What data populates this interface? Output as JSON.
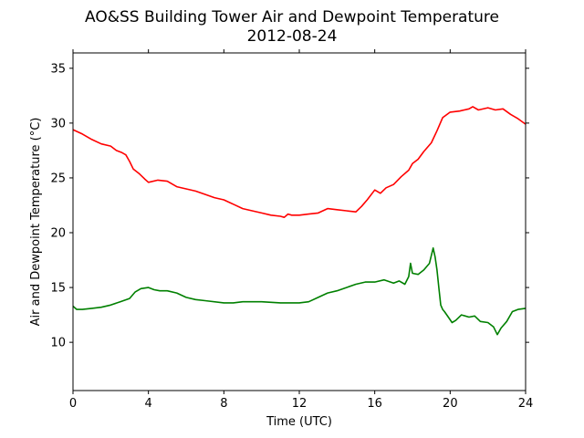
{
  "chart_data": {
    "type": "line",
    "title": "AO&SS Building Tower Air and Dewpoint Temperature",
    "subtitle": "2012-08-24",
    "xlabel": "Time (UTC)",
    "ylabel": "Air and Dewpoint Temperature (°C)",
    "xlim": [
      0,
      24
    ],
    "ylim": [
      5.6,
      36.4
    ],
    "xticks": [
      0,
      4,
      8,
      12,
      16,
      20,
      24
    ],
    "yticks": [
      10,
      15,
      20,
      25,
      30,
      35
    ],
    "grid": false,
    "series": [
      {
        "color": "#ff0000",
        "x": [
          0,
          0.5,
          1,
          1.5,
          2,
          2.3,
          2.6,
          2.8,
          3,
          3.2,
          3.5,
          3.8,
          4,
          4.5,
          5,
          5.5,
          6,
          6.5,
          7,
          7.5,
          8,
          8.5,
          9,
          9.5,
          10,
          10.5,
          11,
          11.2,
          11.4,
          11.6,
          12,
          12.5,
          13,
          13.5,
          14,
          14.5,
          15,
          15.3,
          15.6,
          16,
          16.3,
          16.6,
          17,
          17.4,
          17.8,
          18,
          18.3,
          18.6,
          19,
          19.3,
          19.6,
          20,
          20.5,
          21,
          21.2,
          21.5,
          22,
          22.4,
          22.8,
          23.2,
          23.6,
          24
        ],
        "values": [
          29.4,
          29.0,
          28.5,
          28.1,
          27.9,
          27.5,
          27.3,
          27.1,
          26.5,
          25.8,
          25.4,
          24.9,
          24.6,
          24.8,
          24.7,
          24.2,
          24.0,
          23.8,
          23.5,
          23.2,
          23.0,
          22.6,
          22.2,
          22.0,
          21.8,
          21.6,
          21.5,
          21.4,
          21.7,
          21.6,
          21.6,
          21.7,
          21.8,
          22.2,
          22.1,
          22.0,
          21.9,
          22.4,
          23.0,
          23.9,
          23.6,
          24.1,
          24.4,
          25.1,
          25.7,
          26.3,
          26.7,
          27.4,
          28.2,
          29.3,
          30.5,
          31.0,
          31.1,
          31.3,
          31.5,
          31.2,
          31.4,
          31.2,
          31.3,
          30.8,
          30.4,
          29.9
        ]
      },
      {
        "color": "#008000",
        "x": [
          0,
          0.2,
          0.5,
          1,
          1.5,
          2,
          2.5,
          3,
          3.3,
          3.6,
          4,
          4.3,
          4.6,
          5,
          5.5,
          6,
          6.5,
          7,
          8,
          8.5,
          9,
          10,
          11,
          12,
          12.5,
          13,
          13.5,
          14,
          14.5,
          15,
          15.5,
          16,
          16.5,
          17,
          17.3,
          17.6,
          17.8,
          17.9,
          18.0,
          18.3,
          18.6,
          18.9,
          19.1,
          19.2,
          19.3,
          19.4,
          19.5,
          19.6,
          19.7,
          19.9,
          20.1,
          20.3,
          20.6,
          21,
          21.3,
          21.6,
          22,
          22.3,
          22.5,
          22.7,
          23,
          23.3,
          23.6,
          24
        ],
        "values": [
          13.3,
          13.0,
          13.0,
          13.1,
          13.2,
          13.4,
          13.7,
          14.0,
          14.6,
          14.9,
          15.0,
          14.8,
          14.7,
          14.7,
          14.5,
          14.1,
          13.9,
          13.8,
          13.6,
          13.6,
          13.7,
          13.7,
          13.6,
          13.6,
          13.7,
          14.1,
          14.5,
          14.7,
          15.0,
          15.3,
          15.5,
          15.5,
          15.7,
          15.4,
          15.6,
          15.3,
          16.0,
          17.2,
          16.3,
          16.2,
          16.6,
          17.2,
          18.6,
          17.8,
          16.6,
          15.0,
          13.4,
          13.0,
          12.8,
          12.3,
          11.8,
          12.0,
          12.5,
          12.3,
          12.4,
          11.9,
          11.8,
          11.4,
          10.7,
          11.3,
          11.9,
          12.8,
          13.0,
          13.1
        ]
      }
    ]
  }
}
